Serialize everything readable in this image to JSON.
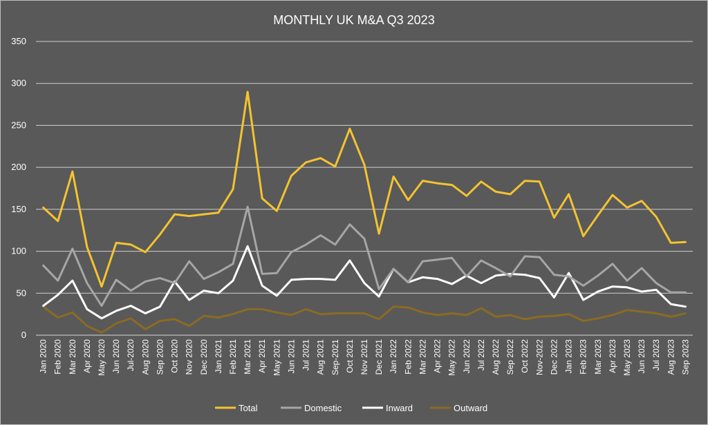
{
  "chart_data": {
    "type": "line",
    "title": "MONTHLY UK M&A Q3 2023",
    "xlabel": "",
    "ylabel": "",
    "ylim": [
      0,
      350
    ],
    "yticks": [
      0,
      50,
      100,
      150,
      200,
      250,
      300,
      350
    ],
    "grid": true,
    "legend": "bottom",
    "categories": [
      "Jan 2020",
      "Feb 2020",
      "Mar 2020",
      "Apr 2020",
      "May 2020",
      "Jun 2020",
      "Jul-2020",
      "Aug 2020",
      "Sep 2020",
      "Oct 2020",
      "Nov 2020",
      "Dec 2020",
      "Jan 2021",
      "Feb 2021",
      "Mar 2021",
      "Apr 2021",
      "May 2021",
      "Jun 2021",
      "Jul 2021",
      "Aug 2021",
      "Sep-2021",
      "Oct 2021",
      "Nov 2021",
      "Dec 2021",
      "Jan 2022",
      "Feb 2022",
      "Mar 2022",
      "Apr 2022",
      "May 2022",
      "Jun 2022",
      "Jul 2022",
      "Aug 2022",
      "Sep 2022",
      "Oct 2022",
      "Nov-2022",
      "Dec 2022",
      "Jan 2023",
      "Feb 2023",
      "Mar 2023",
      "Apr 2023",
      "May 2023",
      "Jun 2023",
      "Jul 2023",
      "Aug 2023",
      "Sep 2023"
    ],
    "series": [
      {
        "name": "Total",
        "color": "#f4c430",
        "values": [
          152,
          136,
          195,
          105,
          58,
          110,
          108,
          99,
          120,
          144,
          142,
          144,
          146,
          174,
          290,
          163,
          148,
          190,
          206,
          211,
          201,
          246,
          203,
          121,
          189,
          161,
          184,
          181,
          179,
          166,
          183,
          171,
          168,
          184,
          183,
          140,
          168,
          118,
          143,
          167,
          152,
          160,
          141,
          110,
          111
        ]
      },
      {
        "name": "Domestic",
        "color": "#a6a6a6",
        "values": [
          83,
          65,
          103,
          62,
          35,
          66,
          53,
          64,
          68,
          62,
          88,
          67,
          75,
          85,
          153,
          73,
          74,
          99,
          108,
          119,
          108,
          132,
          115,
          55,
          79,
          63,
          88,
          90,
          92,
          70,
          89,
          80,
          70,
          94,
          93,
          72,
          70,
          59,
          71,
          85,
          65,
          80,
          62,
          51,
          51
        ]
      },
      {
        "name": "Inward",
        "color": "#ffffff",
        "values": [
          35,
          48,
          65,
          31,
          20,
          29,
          35,
          26,
          34,
          64,
          42,
          53,
          50,
          65,
          106,
          59,
          47,
          66,
          67,
          67,
          66,
          89,
          62,
          46,
          79,
          63,
          69,
          67,
          61,
          71,
          62,
          71,
          73,
          72,
          68,
          45,
          74,
          42,
          52,
          58,
          57,
          52,
          54,
          37,
          34
        ]
      },
      {
        "name": "Outward",
        "color": "#8b6b23",
        "values": [
          34,
          21,
          27,
          11,
          3,
          14,
          20,
          7,
          17,
          19,
          11,
          23,
          21,
          25,
          31,
          31,
          27,
          24,
          31,
          25,
          26,
          26,
          26,
          19,
          34,
          33,
          27,
          24,
          26,
          24,
          32,
          22,
          24,
          19,
          22,
          23,
          25,
          17,
          20,
          24,
          30,
          28,
          26,
          22,
          26
        ]
      }
    ]
  }
}
